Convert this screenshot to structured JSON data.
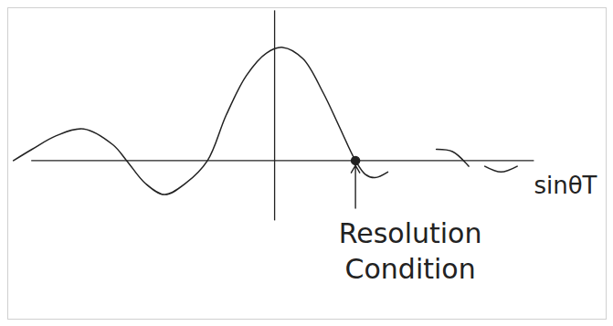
{
  "chart_data": {
    "type": "line",
    "x_label": "sinθT",
    "x": [
      -3.23,
      -3.0,
      -2.7,
      -2.36,
      -2.0,
      -1.83,
      -1.6,
      -1.36,
      -1.1,
      -0.83,
      -0.6,
      -0.35,
      -0.1,
      0.1,
      0.35,
      0.6,
      0.8,
      1.0,
      1.12,
      1.24,
      1.4,
      1.7,
      2.0,
      2.2,
      2.4,
      2.5,
      2.6,
      2.8,
      3.0
    ],
    "values": [
      0.0,
      0.1,
      0.22,
      0.28,
      0.14,
      0.0,
      -0.2,
      -0.3,
      -0.2,
      0.0,
      0.4,
      0.75,
      0.95,
      1.0,
      0.9,
      0.6,
      0.3,
      0.0,
      -0.12,
      -0.15,
      -0.1,
      null,
      0.1,
      0.08,
      -0.05,
      null,
      -0.05,
      -0.1,
      -0.05
    ],
    "color": "#222222",
    "xlim": [
      -3.3,
      4.1
    ],
    "ylim": [
      -1.4,
      1.35
    ],
    "xticks": [],
    "yticks": [],
    "tick_labels": false,
    "grid": false,
    "annotations": [
      {
        "text": "Resolution Condition",
        "x": 1.0,
        "y": 0.0
      }
    ]
  }
}
